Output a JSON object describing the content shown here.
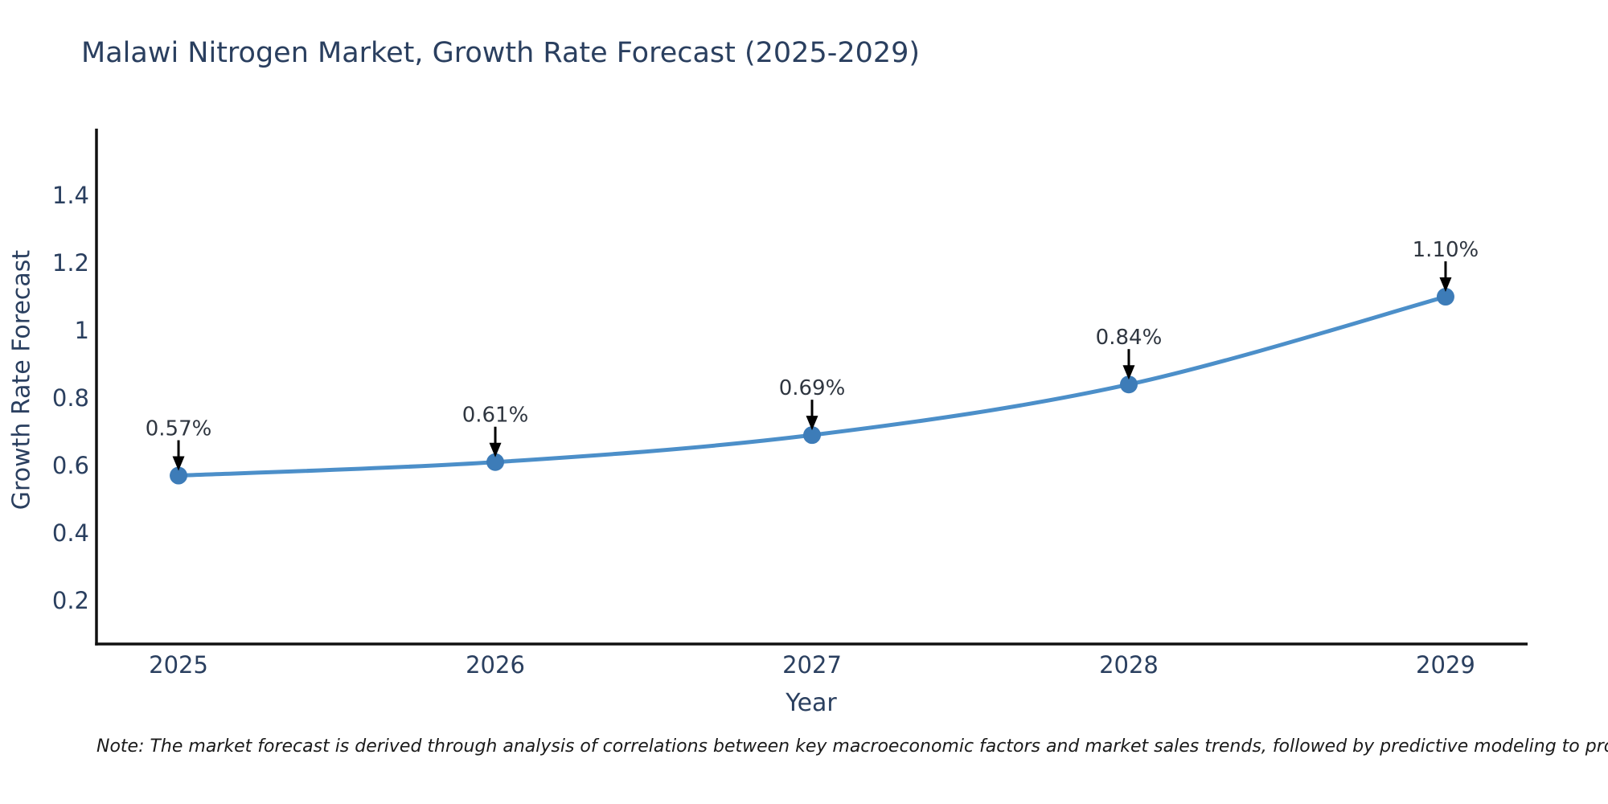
{
  "figure": {
    "title": "Malawi Nitrogen Market, Growth Rate Forecast (2025-2029)",
    "x_axis_label": "Year",
    "y_axis_label": "Growth Rate Forecast",
    "note": "Note: The market forecast is derived through analysis of correlations between key macroeconomic factors and market sales trends, followed by predictive modeling to project future sales"
  },
  "chart_data": {
    "type": "line",
    "title": "Malawi Nitrogen Market, Growth Rate Forecast (2025-2029)",
    "xlabel": "Year",
    "ylabel": "Growth Rate Forecast",
    "x": [
      2025,
      2026,
      2027,
      2028,
      2029
    ],
    "x_tick_labels": [
      "2025",
      "2026",
      "2027",
      "2028",
      "2029"
    ],
    "series": [
      {
        "name": "Growth Rate Forecast",
        "values": [
          0.57,
          0.61,
          0.69,
          0.84,
          1.1
        ],
        "point_labels": [
          "0.57%",
          "0.61%",
          "0.69%",
          "0.84%",
          "1.10%"
        ]
      }
    ],
    "y_ticks": [
      0.2,
      0.4,
      0.6,
      0.8,
      1,
      1.2,
      1.4
    ],
    "y_tick_labels": [
      "0.2",
      "0.4",
      "0.6",
      "0.8",
      "1",
      "1.2",
      "1.4"
    ],
    "xlim": [
      2024.741,
      2029.259
    ],
    "ylim": [
      0.071,
      1.598
    ],
    "grid": false,
    "legend": "none",
    "line_shape": "spline",
    "marker": "circle",
    "annotations": "percentage value labels with downward black arrows above each data point",
    "colors": {
      "line": "#4c8fc9",
      "marker": "#3d7cb8",
      "axis_line": "#111111",
      "chart_text": "#2a3f5f",
      "annotation_text": "#2f3640",
      "arrow": "#000000",
      "note_text": "#1a1a1a",
      "background": "#ffffff"
    }
  }
}
